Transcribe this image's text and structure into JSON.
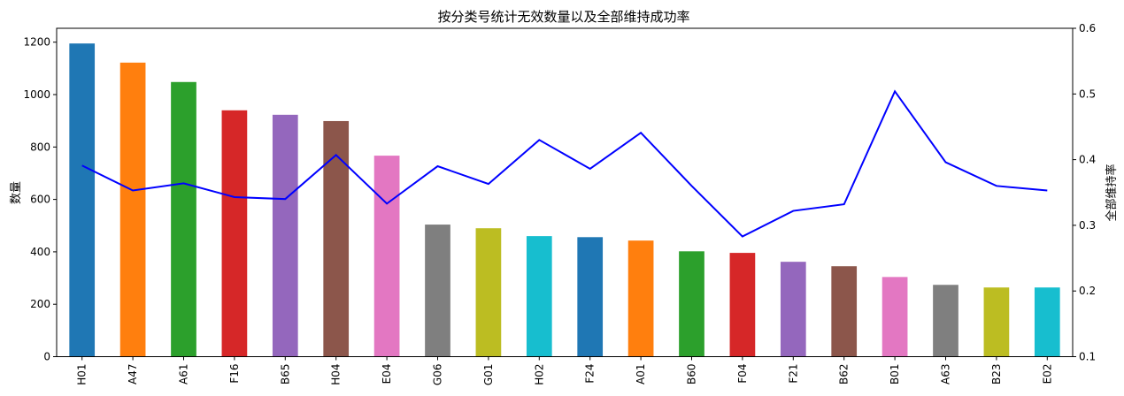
{
  "chart_data": {
    "type": "bar",
    "title": "按分类号统计无效数量以及全部维持成功率",
    "xlabel": "",
    "ylabel": "数量",
    "y2label": "全部维持率",
    "ylim": [
      0,
      1253
    ],
    "y2lim": [
      0.1,
      0.6
    ],
    "yticks": [
      0,
      200,
      400,
      600,
      800,
      1000,
      1200
    ],
    "y2ticks": [
      0.1,
      0.2,
      0.3,
      0.4,
      0.5,
      0.6
    ],
    "grid": false,
    "categories": [
      "H01",
      "A47",
      "A61",
      "F16",
      "B65",
      "H04",
      "E04",
      "G06",
      "G01",
      "H02",
      "F24",
      "A01",
      "B60",
      "F04",
      "F21",
      "B62",
      "B01",
      "A63",
      "B23",
      "E02"
    ],
    "series": [
      {
        "type": "bar",
        "axis": "left",
        "values": [
          1195,
          1122,
          1048,
          940,
          923,
          899,
          767,
          504,
          490,
          460,
          456,
          443,
          402,
          396,
          362,
          345,
          304,
          274,
          264,
          264
        ]
      },
      {
        "type": "line",
        "axis": "right",
        "color": "#0000ff",
        "values": [
          0.391,
          0.353,
          0.364,
          0.343,
          0.34,
          0.407,
          0.333,
          0.39,
          0.363,
          0.43,
          0.386,
          0.441,
          0.36,
          0.283,
          0.322,
          0.332,
          0.504,
          0.396,
          0.36,
          0.353
        ]
      }
    ],
    "bar_colors": [
      "#1f77b4",
      "#ff7f0e",
      "#2ca02c",
      "#d62728",
      "#9467bd",
      "#8c564b",
      "#e377c2",
      "#7f7f7f",
      "#bcbd22",
      "#17becf"
    ]
  }
}
